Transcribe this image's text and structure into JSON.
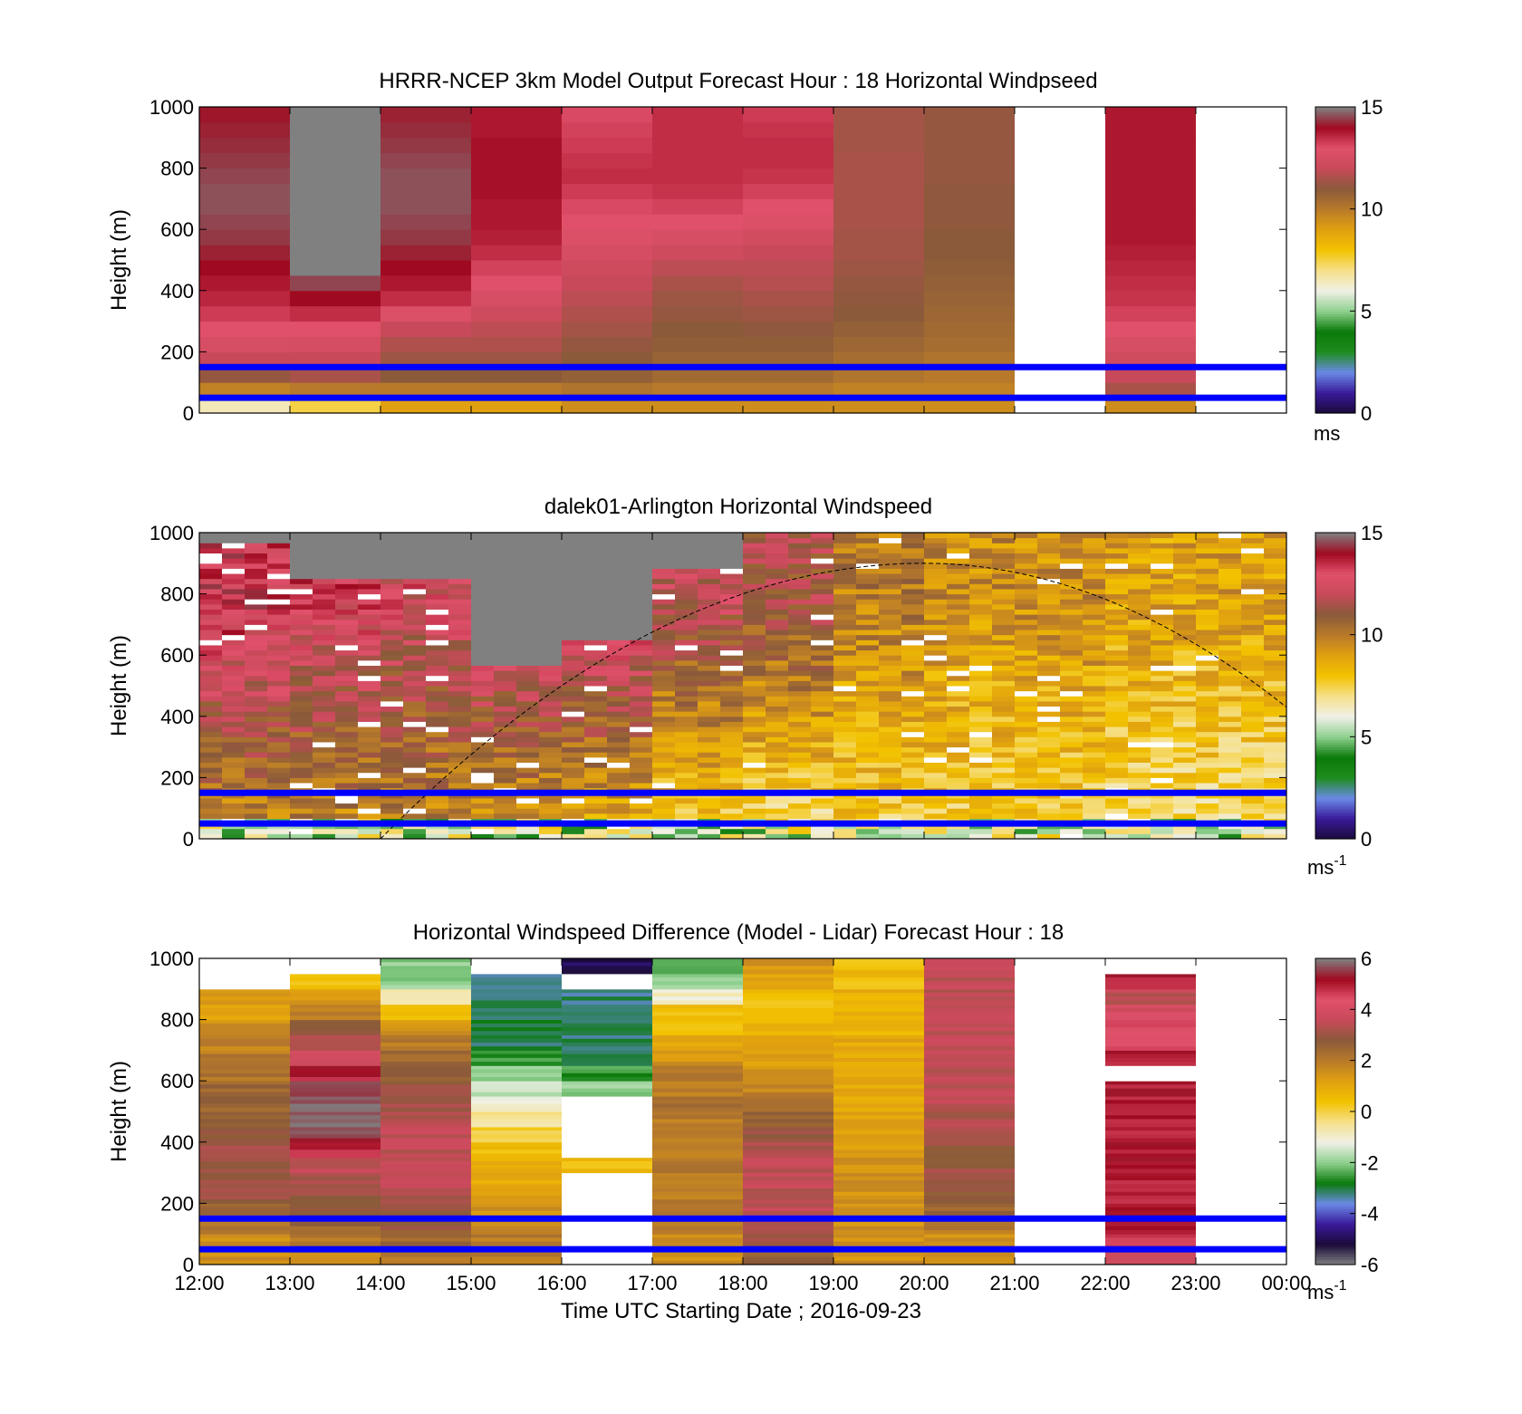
{
  "colors": {
    "reference_lines": "#0000ff",
    "missing_data": "#808080",
    "terminator_curve": "#000000",
    "speed_colormap": [
      "#1a0a3a",
      "#3a1a9a",
      "#6a8ae6",
      "#1e8c1e",
      "#0a7a0a",
      "#8ed08e",
      "#f0f0e6",
      "#f6e08a",
      "#f2c200",
      "#e0a010",
      "#b87a2a",
      "#8a5a3a",
      "#c84a5a",
      "#e0506a",
      "#a00a20",
      "#808080"
    ],
    "diff_colormap": [
      "#808080",
      "#1a0a3a",
      "#3a1a9a",
      "#6a8ae6",
      "#0a7a0a",
      "#8ed08e",
      "#f0f0e6",
      "#f6e08a",
      "#f2c200",
      "#e0a010",
      "#b87a2a",
      "#8a5a3a",
      "#c84a5a",
      "#e0506a",
      "#a00a20",
      "#808080"
    ]
  },
  "x_axis": {
    "ticks": [
      "12:00",
      "13:00",
      "14:00",
      "15:00",
      "16:00",
      "17:00",
      "18:00",
      "19:00",
      "20:00",
      "21:00",
      "22:00",
      "23:00",
      "00:00"
    ],
    "label": "Time UTC  Starting Date ; 2016-09-23"
  },
  "chart_data": [
    {
      "type": "heatmap",
      "title": "HRRR-NCEP 3km Model Output   Forecast Hour : 18 Horizontal Windpseed",
      "ylabel": "Height (m)",
      "ylim": [
        0,
        1000
      ],
      "yticks": [
        "0",
        "200",
        "400",
        "600",
        "800",
        "1000"
      ],
      "colorbar": {
        "ticks": [
          "0",
          "5",
          "10",
          "15"
        ],
        "range": [
          0,
          15
        ],
        "unit": "ms"
      },
      "reference_lines_m": [
        50,
        150
      ],
      "heights_m": [
        0,
        50,
        100,
        150,
        200,
        250,
        300,
        350,
        400,
        450,
        500,
        550,
        600,
        650,
        700,
        750,
        800,
        850,
        900,
        950,
        1000
      ],
      "columns": [
        {
          "start": "12:00",
          "values": [
            6.5,
            9.8,
            11.2,
            12.0,
            12.6,
            13.0,
            13.3,
            13.6,
            13.8,
            14.0,
            14.2,
            14.4,
            14.5,
            14.6,
            14.6,
            14.5,
            14.4,
            14.3,
            14.2,
            14.1
          ]
        },
        {
          "start": "13:00",
          "values": [
            7.5,
            10.0,
            11.5,
            12.0,
            12.5,
            13.0,
            13.5,
            14.0,
            14.5,
            null,
            null,
            null,
            null,
            null,
            null,
            null,
            null,
            null,
            null,
            null
          ]
        },
        {
          "start": "14:00",
          "values": [
            9.0,
            10.0,
            11.0,
            11.3,
            11.6,
            12.0,
            12.8,
            13.5,
            13.8,
            14.0,
            14.2,
            14.4,
            14.5,
            14.6,
            14.6,
            14.6,
            14.5,
            14.4,
            14.3,
            14.2
          ]
        },
        {
          "start": "15:00",
          "values": [
            9.0,
            10.0,
            11.0,
            11.3,
            11.6,
            11.8,
            12.2,
            12.6,
            13.0,
            13.2,
            13.5,
            13.7,
            13.8,
            13.8,
            13.9,
            13.9,
            13.9,
            13.9,
            13.8,
            13.8
          ]
        },
        {
          "start": "16:00",
          "values": [
            9.5,
            10.2,
            10.8,
            11.0,
            11.2,
            11.4,
            11.6,
            11.8,
            12.0,
            12.2,
            12.5,
            12.8,
            13.0,
            13.1,
            13.3,
            13.5,
            13.4,
            13.3,
            13.2,
            13.1
          ]
        },
        {
          "start": "17:00",
          "values": [
            9.5,
            10.0,
            10.5,
            10.7,
            10.9,
            11.0,
            11.2,
            11.3,
            11.5,
            11.8,
            12.2,
            12.6,
            13.0,
            13.2,
            13.4,
            13.5,
            13.5,
            13.5,
            13.5,
            13.5
          ]
        },
        {
          "start": "18:00",
          "values": [
            9.5,
            10.0,
            10.5,
            10.7,
            10.9,
            11.1,
            11.3,
            11.5,
            11.7,
            11.8,
            12.0,
            12.4,
            12.8,
            13.0,
            13.2,
            13.4,
            13.5,
            13.5,
            13.4,
            13.3
          ]
        },
        {
          "start": "19:00",
          "values": [
            9.5,
            9.8,
            10.2,
            10.4,
            10.6,
            10.8,
            11.0,
            11.1,
            11.2,
            11.3,
            11.4,
            11.4,
            11.5,
            11.5,
            11.5,
            11.5,
            11.5,
            11.4,
            11.4,
            11.4
          ]
        },
        {
          "start": "20:00",
          "values": [
            9.5,
            9.8,
            10.0,
            10.2,
            10.4,
            10.5,
            10.6,
            10.7,
            10.8,
            10.9,
            11.0,
            11.0,
            11.1,
            11.1,
            11.1,
            11.2,
            11.2,
            11.2,
            11.2,
            11.2
          ]
        },
        {
          "start": "21:00",
          "values": [
            null,
            null,
            null,
            null,
            null,
            null,
            null,
            null,
            null,
            null,
            null,
            null,
            null,
            null,
            null,
            null,
            null,
            null,
            null,
            null
          ]
        },
        {
          "start": "22:00",
          "values": [
            9.5,
            11.5,
            12.0,
            12.3,
            12.6,
            13.0,
            13.2,
            13.4,
            13.5,
            13.6,
            13.7,
            13.8,
            13.8,
            13.8,
            13.8,
            13.8,
            13.8,
            13.8,
            13.8,
            13.8
          ]
        },
        {
          "start": "23:00",
          "values": [
            null,
            null,
            null,
            null,
            null,
            null,
            null,
            null,
            null,
            null,
            null,
            null,
            null,
            null,
            null,
            null,
            null,
            null,
            null,
            null
          ]
        }
      ]
    },
    {
      "type": "heatmap",
      "title": "dalek01-Arlington  Horizontal Windspeed",
      "ylabel": "Height (m)",
      "ylim": [
        0,
        1000
      ],
      "yticks": [
        "0",
        "200",
        "400",
        "600",
        "800",
        "1000"
      ],
      "colorbar": {
        "ticks": [
          "0",
          "5",
          "10",
          "15"
        ],
        "range": [
          0,
          15
        ],
        "unit": "ms",
        "unit_exponent": "-1"
      },
      "reference_lines_m": [
        50,
        150
      ],
      "terminator_curve": {
        "start": "14:00",
        "peak_time": "20:00",
        "peak_height_m": 900,
        "end": "00:00",
        "end_height_m": 430
      },
      "profile_interval_minutes": 15,
      "mean_speed_by_hour": [
        {
          "start": "12:00",
          "lower": 9.5,
          "upper": 13.5,
          "missing_above_m": 960
        },
        {
          "start": "13:00",
          "lower": 9.5,
          "upper": 13.0,
          "missing_above_m": 850
        },
        {
          "start": "14:00",
          "lower": 9.5,
          "upper": 12.5,
          "missing_above_m": 850
        },
        {
          "start": "15:00",
          "lower": 9.0,
          "upper": 13.5,
          "missing_above_m": 560
        },
        {
          "start": "16:00",
          "lower": 8.5,
          "upper": 13.5,
          "missing_above_m": 640
        },
        {
          "start": "17:00",
          "lower": 7.5,
          "upper": 12.0,
          "missing_above_m": 870
        },
        {
          "start": "18:00",
          "lower": 7.0,
          "upper": 11.5,
          "missing_above_m": 1000
        },
        {
          "start": "19:00",
          "lower": 7.5,
          "upper": 10.0,
          "missing_above_m": 1000
        },
        {
          "start": "20:00",
          "lower": 7.5,
          "upper": 9.5,
          "missing_above_m": 1000
        },
        {
          "start": "21:00",
          "lower": 7.5,
          "upper": 9.5,
          "missing_above_m": 1000
        },
        {
          "start": "22:00",
          "lower": 7.0,
          "upper": 9.0,
          "missing_above_m": 1000
        },
        {
          "start": "23:00",
          "lower": 7.0,
          "upper": 9.0,
          "missing_above_m": 1000
        }
      ]
    },
    {
      "type": "heatmap",
      "title": "Horizontal Windspeed Difference (Model - Lidar) Forecast Hour : 18",
      "xlabel": "Time UTC  Starting Date ; 2016-09-23",
      "ylabel": "Height (m)",
      "ylim": [
        0,
        1000
      ],
      "yticks": [
        "0",
        "200",
        "400",
        "600",
        "800",
        "1000"
      ],
      "colorbar": {
        "ticks": [
          "-6",
          "-4",
          "-2",
          "0",
          "2",
          "4",
          "6"
        ],
        "range": [
          -6,
          6
        ],
        "unit": "ms",
        "unit_exponent": "-1"
      },
      "reference_lines_m": [
        50,
        150
      ],
      "heights_m": [
        0,
        50,
        100,
        150,
        200,
        250,
        300,
        350,
        400,
        450,
        500,
        550,
        600,
        650,
        700,
        750,
        800,
        850,
        900,
        950,
        1000
      ],
      "columns": [
        {
          "start": "12:00",
          "values": [
            1.5,
            1.5,
            2.0,
            2.5,
            3.0,
            3.0,
            3.0,
            3.2,
            3.0,
            2.8,
            2.5,
            2.5,
            2.2,
            2.0,
            1.8,
            1.5,
            1.2,
            1.5,
            null,
            null
          ]
        },
        {
          "start": "13:00",
          "values": [
            1.5,
            2.0,
            2.5,
            2.8,
            3.0,
            3.2,
            3.5,
            4.8,
            5.5,
            5.8,
            5.8,
            5.5,
            5.0,
            4.0,
            3.5,
            3.0,
            2.0,
            1.5,
            0.5,
            null
          ]
        },
        {
          "start": "14:00",
          "values": [
            2.0,
            2.5,
            2.8,
            3.0,
            3.2,
            3.5,
            3.5,
            3.5,
            3.5,
            3.3,
            3.2,
            3.0,
            2.8,
            2.5,
            2.0,
            1.5,
            0.5,
            -0.5,
            -2.0,
            -2.0
          ]
        },
        {
          "start": "15:00",
          "values": [
            2.0,
            2.0,
            1.8,
            1.5,
            1.2,
            1.0,
            0.8,
            0.5,
            0.0,
            -0.5,
            -1.0,
            -1.5,
            -2.0,
            -2.5,
            -3.0,
            -3.0,
            -3.0,
            -3.2,
            -3.5,
            null
          ]
        },
        {
          "start": "16:00",
          "values": [
            null,
            null,
            null,
            null,
            null,
            null,
            0.5,
            null,
            null,
            null,
            null,
            -2.0,
            -2.5,
            -3.0,
            -3.2,
            -3.0,
            -3.0,
            -3.2,
            null,
            -5.0
          ]
        },
        {
          "start": "17:00",
          "values": [
            1.5,
            1.5,
            1.8,
            2.0,
            2.0,
            2.0,
            2.0,
            2.0,
            2.0,
            2.0,
            2.2,
            2.0,
            2.0,
            1.5,
            1.0,
            0.5,
            0.5,
            -1.0,
            -2.0,
            -2.5
          ]
        },
        {
          "start": "18:00",
          "values": [
            2.5,
            3.0,
            3.2,
            3.5,
            3.5,
            3.5,
            3.5,
            3.2,
            3.0,
            2.5,
            2.0,
            1.8,
            1.5,
            1.2,
            1.0,
            0.8,
            0.5,
            0.5,
            1.0,
            1.5
          ]
        },
        {
          "start": "19:00",
          "values": [
            1.5,
            1.5,
            1.5,
            1.5,
            1.5,
            1.5,
            1.5,
            1.2,
            1.2,
            1.2,
            1.0,
            1.0,
            1.0,
            1.0,
            1.0,
            0.8,
            0.8,
            0.8,
            0.5,
            0.5
          ]
        },
        {
          "start": "20:00",
          "values": [
            1.5,
            1.5,
            2.0,
            2.5,
            2.8,
            3.0,
            3.0,
            3.0,
            3.2,
            3.3,
            3.4,
            3.5,
            3.5,
            3.5,
            3.5,
            3.5,
            3.5,
            3.5,
            3.5,
            3.5
          ]
        },
        {
          "start": "21:00",
          "values": [
            null,
            null,
            null,
            null,
            null,
            null,
            null,
            null,
            null,
            null,
            null,
            null,
            null,
            null,
            null,
            null,
            null,
            null,
            null,
            null
          ]
        },
        {
          "start": "22:00",
          "values": [
            4.0,
            4.5,
            5.0,
            5.0,
            5.0,
            5.0,
            5.0,
            5.0,
            5.0,
            5.0,
            5.0,
            5.0,
            null,
            5.0,
            4.5,
            4.5,
            4.0,
            3.5,
            5.0,
            null
          ]
        },
        {
          "start": "23:00",
          "values": [
            null,
            null,
            null,
            null,
            null,
            null,
            null,
            null,
            null,
            null,
            null,
            null,
            null,
            null,
            null,
            null,
            null,
            null,
            null,
            null
          ]
        }
      ]
    }
  ]
}
